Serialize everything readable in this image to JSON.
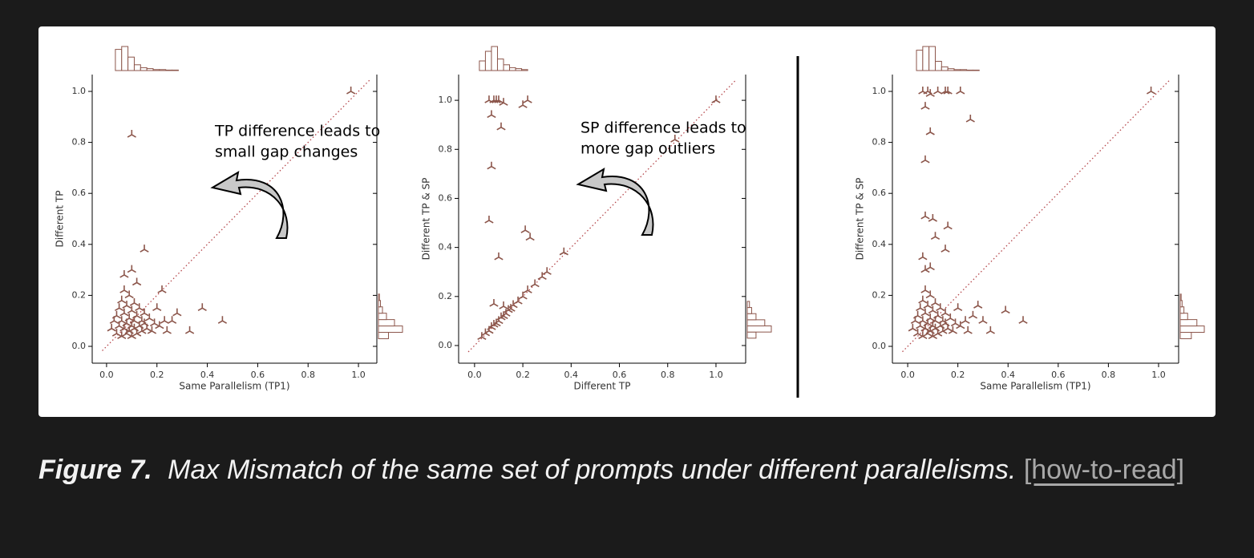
{
  "chart_data": [
    {
      "type": "scatter",
      "xlabel": "Same Parallelism (TP1)",
      "ylabel": "Different TP",
      "annotation": [
        "TP difference leads to",
        "small gap changes"
      ],
      "xlim": [
        -0.057,
        1.073
      ],
      "ylim": [
        -0.066,
        1.066
      ],
      "xticks": [
        {
          "value": 0,
          "label": "0.0"
        },
        0.2,
        0.4,
        0.6,
        0.8,
        {
          "value": 1,
          "label": "1.0"
        }
      ],
      "yticks": [
        {
          "value": 0,
          "label": "0.0"
        },
        0.2,
        0.4,
        0.6,
        0.8,
        {
          "value": 1,
          "label": "1.0"
        }
      ],
      "color": "#8c564b",
      "diagonal": true,
      "diagonal_color": "#b5474b",
      "x": [
        0.02,
        0.03,
        0.04,
        0.04,
        0.05,
        0.05,
        0.06,
        0.06,
        0.06,
        0.07,
        0.07,
        0.07,
        0.08,
        0.08,
        0.08,
        0.09,
        0.09,
        0.09,
        0.1,
        0.1,
        0.1,
        0.11,
        0.11,
        0.11,
        0.12,
        0.12,
        0.13,
        0.13,
        0.14,
        0.14,
        0.15,
        0.15,
        0.16,
        0.17,
        0.18,
        0.19,
        0.2,
        0.21,
        0.23,
        0.24,
        0.97,
        0.1,
        0.15,
        0.1,
        0.07,
        0.12,
        0.22,
        0.38,
        0.46,
        0.33,
        0.28,
        0.26
      ],
      "values": [
        0.07,
        0.1,
        0.05,
        0.12,
        0.08,
        0.15,
        0.04,
        0.1,
        0.18,
        0.07,
        0.13,
        0.22,
        0.05,
        0.09,
        0.16,
        0.06,
        0.11,
        0.2,
        0.04,
        0.08,
        0.14,
        0.07,
        0.1,
        0.17,
        0.05,
        0.12,
        0.08,
        0.15,
        0.06,
        0.1,
        0.09,
        0.13,
        0.07,
        0.11,
        0.06,
        0.09,
        0.15,
        0.08,
        0.1,
        0.06,
        1.0,
        0.83,
        0.38,
        0.3,
        0.28,
        0.25,
        0.22,
        0.15,
        0.1,
        0.06,
        0.13,
        0.1
      ],
      "x_hist": {
        "bins": [
          0.035,
          0.06,
          0.085,
          0.11,
          0.135,
          0.16,
          0.185,
          0.21,
          0.235,
          0.26,
          0.285
        ],
        "counts": [
          22,
          25,
          14,
          6,
          3,
          2,
          1,
          1,
          0.5,
          0.5
        ]
      },
      "y_hist": {
        "bins": [
          0.03,
          0.055,
          0.08,
          0.105,
          0.13,
          0.155,
          0.18,
          0.205
        ],
        "counts": [
          10,
          24,
          16,
          8,
          4,
          2,
          1
        ]
      }
    },
    {
      "type": "scatter",
      "xlabel": "Different TP",
      "ylabel": "Different TP & SP",
      "annotation": [
        "SP difference leads to",
        "more gap outliers"
      ],
      "xlim": [
        -0.066,
        1.123
      ],
      "ylim": [
        -0.072,
        1.105
      ],
      "xticks": [
        {
          "value": 0,
          "label": "0.0"
        },
        0.2,
        0.4,
        0.6,
        0.8,
        {
          "value": 1,
          "label": "1.0"
        }
      ],
      "yticks": [
        {
          "value": 0,
          "label": "0.0"
        },
        0.2,
        0.4,
        0.6,
        0.8,
        {
          "value": 1,
          "label": "1.0"
        }
      ],
      "color": "#8c564b",
      "diagonal": true,
      "diagonal_color": "#b5474b",
      "x": [
        0.03,
        0.045,
        0.06,
        0.07,
        0.08,
        0.09,
        0.1,
        0.11,
        0.12,
        0.13,
        0.14,
        0.15,
        0.16,
        0.18,
        0.2,
        0.22,
        0.25,
        0.28,
        0.3,
        0.37,
        0.83,
        1.0,
        0.06,
        0.08,
        0.09,
        0.1,
        0.12,
        0.2,
        0.22,
        0.07,
        0.11,
        0.07,
        0.06,
        0.21,
        0.23,
        0.1,
        0.08,
        0.12
      ],
      "values": [
        0.035,
        0.05,
        0.06,
        0.075,
        0.085,
        0.09,
        0.1,
        0.115,
        0.12,
        0.13,
        0.145,
        0.15,
        0.165,
        0.18,
        0.2,
        0.225,
        0.25,
        0.28,
        0.3,
        0.38,
        0.84,
        1.0,
        1.0,
        1.0,
        1.0,
        1.0,
        0.99,
        0.98,
        1.0,
        0.94,
        0.89,
        0.73,
        0.51,
        0.47,
        0.44,
        0.36,
        0.17,
        0.16
      ],
      "x_hist": {
        "bins": [
          0.02,
          0.045,
          0.07,
          0.095,
          0.12,
          0.145,
          0.17,
          0.195,
          0.22
        ],
        "counts": [
          10,
          20,
          25,
          12,
          6,
          3,
          2,
          1
        ]
      },
      "y_hist": {
        "bins": [
          0.03,
          0.055,
          0.08,
          0.105,
          0.13,
          0.155,
          0.18
        ],
        "counts": [
          8,
          22,
          16,
          8,
          4,
          2
        ]
      }
    },
    {
      "type": "scatter",
      "xlabel": "Same Parallelism (TP1)",
      "ylabel": "Different TP & SP",
      "xlim": [
        -0.061,
        1.08
      ],
      "ylim": [
        -0.066,
        1.066
      ],
      "xticks": [
        {
          "value": 0,
          "label": "0.0"
        },
        0.2,
        0.4,
        0.6,
        0.8,
        {
          "value": 1,
          "label": "1.0"
        }
      ],
      "yticks": [
        {
          "value": 0,
          "label": "0.0"
        },
        0.2,
        0.4,
        0.6,
        0.8,
        {
          "value": 1,
          "label": "1.0"
        }
      ],
      "color": "#8c564b",
      "diagonal": true,
      "diagonal_color": "#b5474b",
      "x": [
        0.02,
        0.03,
        0.04,
        0.04,
        0.05,
        0.05,
        0.06,
        0.06,
        0.06,
        0.07,
        0.07,
        0.07,
        0.08,
        0.08,
        0.08,
        0.09,
        0.09,
        0.09,
        0.1,
        0.1,
        0.1,
        0.11,
        0.11,
        0.11,
        0.12,
        0.12,
        0.13,
        0.13,
        0.14,
        0.14,
        0.15,
        0.15,
        0.16,
        0.17,
        0.18,
        0.19,
        0.2,
        0.21,
        0.23,
        0.24,
        0.97,
        0.06,
        0.08,
        0.09,
        0.12,
        0.15,
        0.16,
        0.21,
        0.07,
        0.09,
        0.25,
        0.07,
        0.07,
        0.1,
        0.16,
        0.11,
        0.15,
        0.06,
        0.09,
        0.07,
        0.28,
        0.39,
        0.46,
        0.33,
        0.3,
        0.26
      ],
      "values": [
        0.07,
        0.1,
        0.05,
        0.12,
        0.08,
        0.15,
        0.04,
        0.1,
        0.18,
        0.07,
        0.13,
        0.22,
        0.05,
        0.09,
        0.16,
        0.06,
        0.11,
        0.2,
        0.04,
        0.08,
        0.14,
        0.07,
        0.1,
        0.17,
        0.05,
        0.12,
        0.08,
        0.15,
        0.06,
        0.1,
        0.09,
        0.13,
        0.07,
        0.11,
        0.06,
        0.09,
        0.15,
        0.08,
        0.1,
        0.06,
        1.0,
        1.0,
        1.0,
        0.99,
        1.0,
        1.0,
        1.0,
        1.0,
        0.94,
        0.84,
        0.89,
        0.73,
        0.51,
        0.5,
        0.47,
        0.43,
        0.38,
        0.35,
        0.31,
        0.3,
        0.16,
        0.14,
        0.1,
        0.06,
        0.1,
        0.12
      ],
      "x_hist": {
        "bins": [
          0.035,
          0.06,
          0.085,
          0.11,
          0.135,
          0.16,
          0.185,
          0.21,
          0.235,
          0.26,
          0.285
        ],
        "counts": [
          22,
          26,
          26,
          10,
          4,
          2,
          1,
          1,
          0.5,
          0.5
        ]
      },
      "y_hist": {
        "bins": [
          0.03,
          0.055,
          0.08,
          0.105,
          0.13,
          0.155,
          0.18,
          0.205
        ],
        "counts": [
          12,
          26,
          18,
          8,
          4,
          2,
          1
        ]
      }
    }
  ],
  "caption": {
    "label": "Figure 7.",
    "text": "Max Mismatch of the same set of prompts under different parallelisms.",
    "link": "[how-to-read]"
  }
}
